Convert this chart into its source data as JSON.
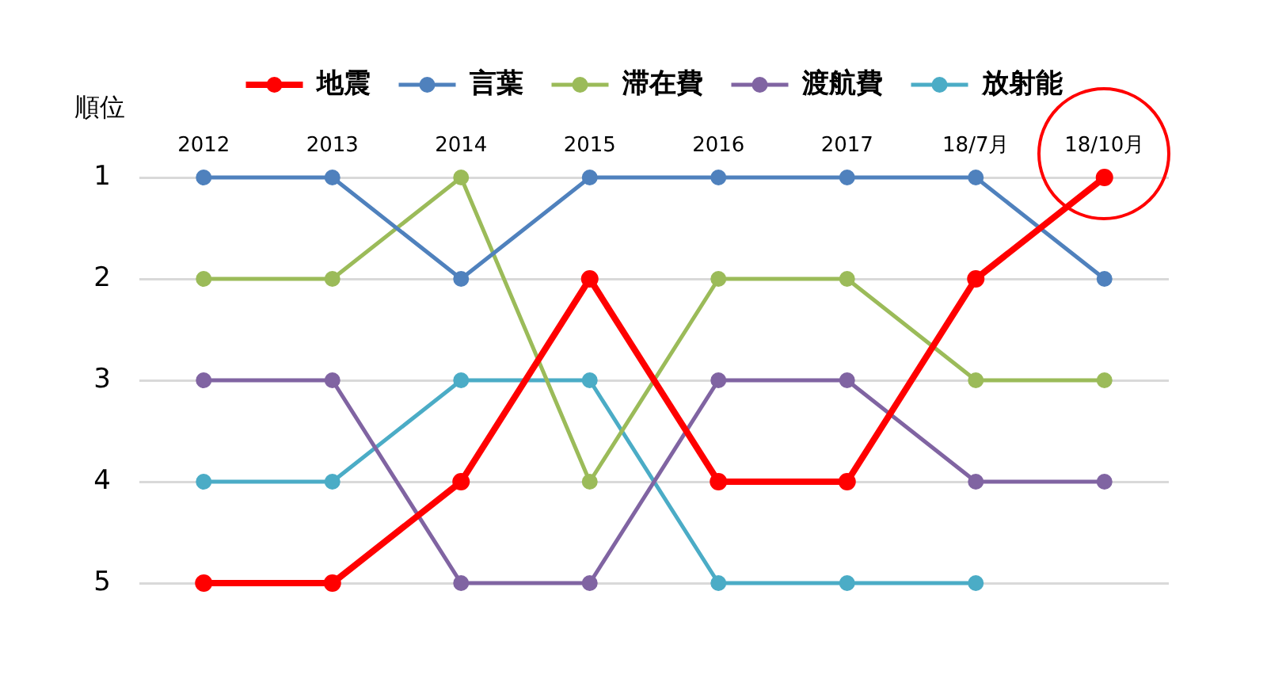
{
  "chart_data": {
    "type": "line",
    "ylabel": "順位",
    "categories": [
      "2012",
      "2013",
      "2014",
      "2015",
      "2016",
      "2017",
      "18/7月",
      "18/10月"
    ],
    "series": [
      {
        "name": "地震",
        "color": "#ff0000",
        "values": [
          5,
          5,
          4,
          2,
          4,
          4,
          2,
          1
        ]
      },
      {
        "name": "言葉",
        "color": "#4f81bd",
        "values": [
          1,
          1,
          2,
          1,
          1,
          1,
          1,
          2
        ]
      },
      {
        "name": "滞在費",
        "color": "#9bbb59",
        "values": [
          2,
          2,
          1,
          4,
          2,
          2,
          3,
          3
        ]
      },
      {
        "name": "渡航費",
        "color": "#8064a2",
        "values": [
          3,
          3,
          5,
          5,
          3,
          3,
          4,
          4
        ]
      },
      {
        "name": "放射能",
        "color": "#4bacc6",
        "values": [
          4,
          4,
          3,
          3,
          5,
          5,
          5,
          null
        ]
      }
    ],
    "ylim": [
      5,
      1
    ],
    "yticks": [
      1,
      2,
      3,
      4,
      5
    ],
    "grid": "y",
    "legend": "top",
    "marker": "circle",
    "line_style": "solid"
  }
}
